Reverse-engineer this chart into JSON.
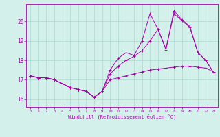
{
  "x": [
    0,
    1,
    2,
    3,
    4,
    5,
    6,
    7,
    8,
    9,
    10,
    11,
    12,
    13,
    14,
    15,
    16,
    17,
    18,
    19,
    20,
    21,
    22,
    23
  ],
  "line1": [
    17.2,
    17.1,
    17.1,
    17.0,
    16.8,
    16.6,
    16.5,
    16.4,
    16.1,
    16.4,
    17.0,
    17.1,
    17.2,
    17.3,
    17.4,
    17.5,
    17.55,
    17.6,
    17.65,
    17.7,
    17.7,
    17.65,
    17.6,
    17.4
  ],
  "line2": [
    17.2,
    17.1,
    17.1,
    17.0,
    16.8,
    16.6,
    16.5,
    16.4,
    16.1,
    16.4,
    17.3,
    17.7,
    18.0,
    18.2,
    18.5,
    19.0,
    19.6,
    18.6,
    20.4,
    20.05,
    19.7,
    18.4,
    18.0,
    17.35
  ],
  "line3": [
    17.2,
    17.1,
    17.1,
    17.0,
    16.8,
    16.6,
    16.5,
    16.4,
    16.1,
    16.4,
    17.5,
    18.1,
    18.4,
    18.25,
    19.0,
    20.4,
    19.6,
    18.55,
    20.55,
    20.1,
    19.75,
    18.4,
    18.0,
    17.35
  ],
  "bg_color": "#d4f0eb",
  "line_color": "#aa00aa",
  "grid_color": "#aad8d0",
  "xlabel": "Windchill (Refroidissement éolien,°C)",
  "yticks": [
    16,
    17,
    18,
    19,
    20
  ],
  "ylim": [
    15.6,
    20.9
  ],
  "xlim": [
    -0.5,
    23.5
  ],
  "xtick_labels": [
    "0",
    "1",
    "2",
    "3",
    "4",
    "5",
    "6",
    "7",
    "8",
    "9",
    "10",
    "11",
    "12",
    "13",
    "14",
    "15",
    "16",
    "17",
    "18",
    "19",
    "20",
    "21",
    "22",
    "23"
  ]
}
